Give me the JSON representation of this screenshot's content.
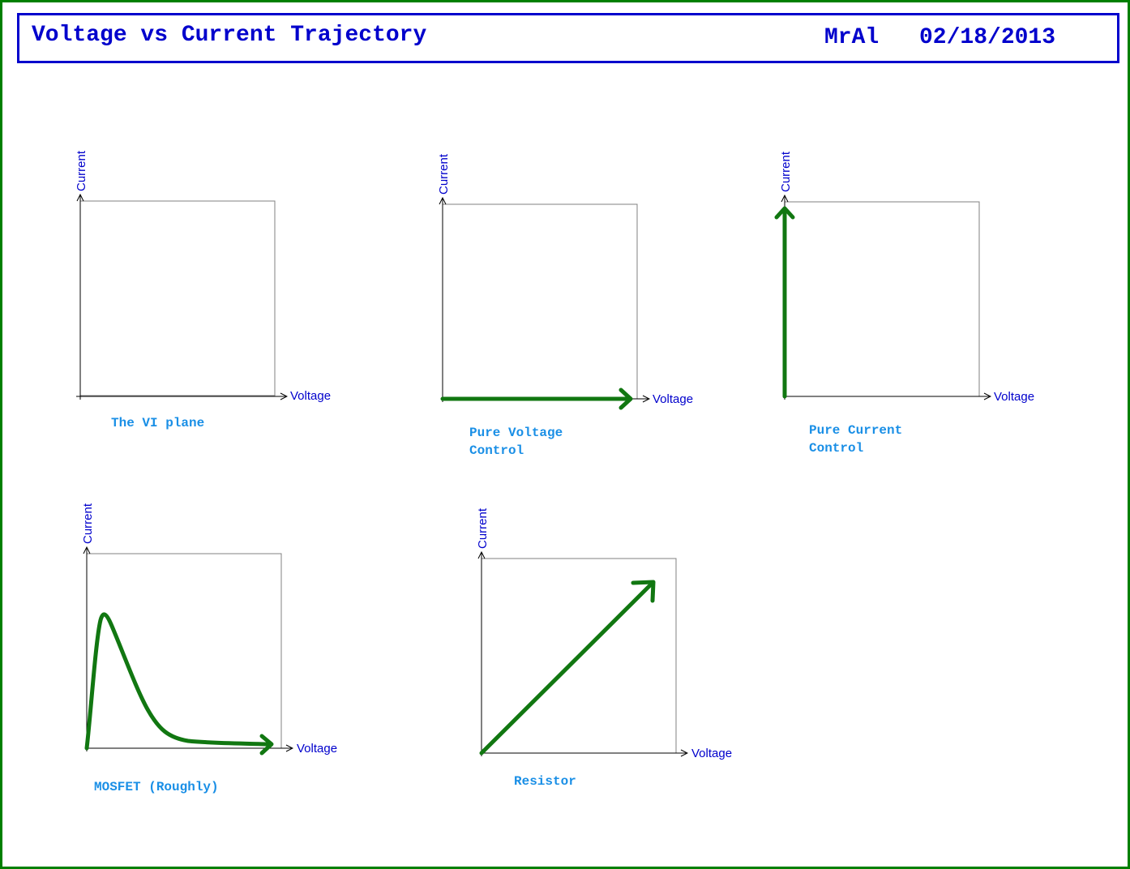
{
  "header": {
    "title": "Voltage vs Current Trajectory",
    "author": "MrAl",
    "date": "02/18/2013"
  },
  "colors": {
    "frame": "#008000",
    "header_border": "#0000cc",
    "text_blue": "#0000cc",
    "caption_blue": "#1a8fe6",
    "trajectory": "#117711",
    "box_gray": "#808080"
  },
  "axis_labels": {
    "x": "Voltage",
    "y": "Current"
  },
  "panels": [
    {
      "id": "vi-plane",
      "caption": [
        "The VI plane"
      ],
      "trajectory": "none"
    },
    {
      "id": "pure-voltage",
      "caption": [
        "Pure Voltage",
        "Control"
      ],
      "trajectory": "horizontal-arrow"
    },
    {
      "id": "pure-current",
      "caption": [
        "Pure Current",
        "Control"
      ],
      "trajectory": "vertical-arrow"
    },
    {
      "id": "mosfet",
      "caption": [
        "MOSFET (Roughly)"
      ],
      "trajectory": "peak-then-decay"
    },
    {
      "id": "resistor",
      "caption": [
        "Resistor"
      ],
      "trajectory": "diagonal-arrow"
    }
  ]
}
